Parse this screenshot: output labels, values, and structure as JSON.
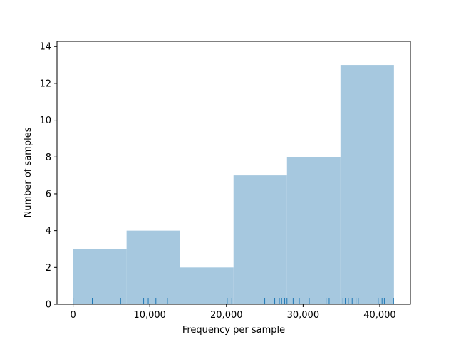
{
  "chart_data": {
    "type": "bar",
    "title": "",
    "xlabel": "Frequency per sample",
    "ylabel": "Number of samples",
    "xlim": [
      -2100,
      44000
    ],
    "ylim": [
      0,
      14.28
    ],
    "bins": [
      {
        "start": 0,
        "end": 6975,
        "count": 3
      },
      {
        "start": 6975,
        "end": 13950,
        "count": 4
      },
      {
        "start": 13950,
        "end": 20925,
        "count": 2
      },
      {
        "start": 20925,
        "end": 27900,
        "count": 7
      },
      {
        "start": 27900,
        "end": 34875,
        "count": 8
      },
      {
        "start": 34875,
        "end": 41850,
        "count": 13
      }
    ],
    "rug": [
      0,
      2500,
      6200,
      9200,
      9800,
      10800,
      12300,
      20100,
      20700,
      25000,
      26300,
      26900,
      27200,
      27600,
      27900,
      28700,
      29500,
      30800,
      33000,
      33400,
      35200,
      35500,
      35900,
      36400,
      36900,
      37200,
      39400,
      39800,
      40300,
      40600,
      41800
    ],
    "x_ticks": [
      {
        "value": 0,
        "label": "0"
      },
      {
        "value": 10000,
        "label": "10,000"
      },
      {
        "value": 20000,
        "label": "20,000"
      },
      {
        "value": 30000,
        "label": "30,000"
      },
      {
        "value": 40000,
        "label": "40,000"
      }
    ],
    "y_ticks": [
      {
        "value": 0,
        "label": "0"
      },
      {
        "value": 2,
        "label": "2"
      },
      {
        "value": 4,
        "label": "4"
      },
      {
        "value": 6,
        "label": "6"
      },
      {
        "value": 8,
        "label": "8"
      },
      {
        "value": 10,
        "label": "10"
      },
      {
        "value": 12,
        "label": "12"
      },
      {
        "value": 14,
        "label": "14"
      }
    ],
    "grid": false,
    "colors": {
      "bar": "#a6c8df",
      "rug": "#1f77b4",
      "axis": "#000000"
    }
  }
}
